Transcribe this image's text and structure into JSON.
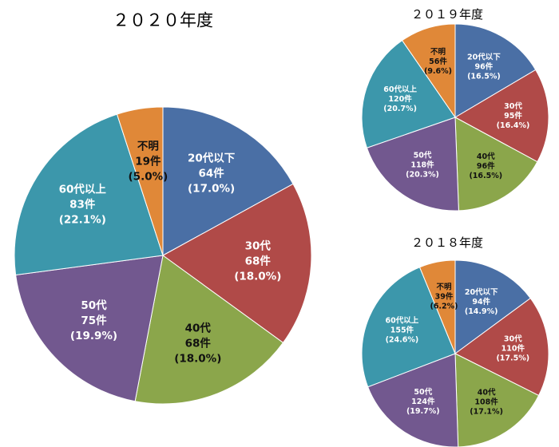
{
  "chart_data": [
    {
      "type": "pie",
      "title": "２０２０年度",
      "slices": [
        {
          "label": "20代以下",
          "count": "64件",
          "percent": "(17.0%)",
          "value": 17.0,
          "color": "#4a6fa5"
        },
        {
          "label": "30代",
          "count": "68件",
          "percent": "(18.0%)",
          "value": 18.0,
          "color": "#b04a48"
        },
        {
          "label": "40代",
          "count": "68件",
          "percent": "(18.0%)",
          "value": 18.0,
          "color": "#8ba64b"
        },
        {
          "label": "50代",
          "count": "75件",
          "percent": "(19.9%)",
          "value": 19.9,
          "color": "#72588f"
        },
        {
          "label": "60代以上",
          "count": "83件",
          "percent": "(22.1%)",
          "value": 22.1,
          "color": "#3c97ab"
        },
        {
          "label": "不明",
          "count": "19件",
          "percent": "(5.0%)",
          "value": 5.0,
          "color": "#e08838"
        }
      ]
    },
    {
      "type": "pie",
      "title": "２０１９年度",
      "slices": [
        {
          "label": "20代以下",
          "count": "96件",
          "percent": "(16.5%)",
          "value": 16.5,
          "color": "#4a6fa5"
        },
        {
          "label": "30代",
          "count": "95件",
          "percent": "(16.4%)",
          "value": 16.4,
          "color": "#b04a48"
        },
        {
          "label": "40代",
          "count": "96件",
          "percent": "(16.5%)",
          "value": 16.5,
          "color": "#8ba64b"
        },
        {
          "label": "50代",
          "count": "118件",
          "percent": "(20.3%)",
          "value": 20.3,
          "color": "#72588f"
        },
        {
          "label": "60代以上",
          "count": "120件",
          "percent": "(20.7%)",
          "value": 20.7,
          "color": "#3c97ab"
        },
        {
          "label": "不明",
          "count": "56件",
          "percent": "(9.6%)",
          "value": 9.6,
          "color": "#e08838"
        }
      ]
    },
    {
      "type": "pie",
      "title": "２０１８年度",
      "slices": [
        {
          "label": "20代以下",
          "count": "94件",
          "percent": "(14.9%)",
          "value": 14.9,
          "color": "#4a6fa5"
        },
        {
          "label": "30代",
          "count": "110件",
          "percent": "(17.5%)",
          "value": 17.5,
          "color": "#b04a48"
        },
        {
          "label": "40代",
          "count": "108件",
          "percent": "(17.1%)",
          "value": 17.1,
          "color": "#8ba64b"
        },
        {
          "label": "50代",
          "count": "124件",
          "percent": "(19.7%)",
          "value": 19.7,
          "color": "#72588f"
        },
        {
          "label": "60代以上",
          "count": "155件",
          "percent": "(24.6%)",
          "value": 24.6,
          "color": "#3c97ab"
        },
        {
          "label": "不明",
          "count": "39件",
          "percent": "(6.2%)",
          "value": 6.2,
          "color": "#e08838"
        }
      ]
    }
  ]
}
